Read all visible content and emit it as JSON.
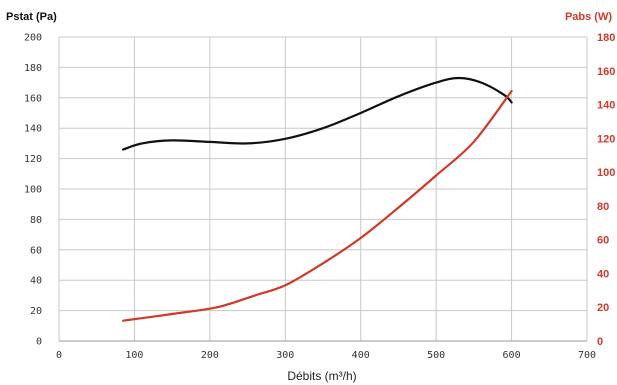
{
  "chart_data": {
    "type": "line",
    "xlabel": "Débits (m³/h)",
    "ylabel_left": "Pstat (Pa)",
    "ylabel_right": "Pabs (W)",
    "xlim": [
      0,
      700
    ],
    "ylim_left": [
      0,
      200
    ],
    "ylim_right": [
      0,
      180
    ],
    "x_ticks": [
      "0",
      "100",
      "200",
      "300",
      "400",
      "500",
      "600",
      "700"
    ],
    "y_left_ticks": [
      "0",
      "20",
      "40",
      "60",
      "80",
      "100",
      "120",
      "140",
      "160",
      "180",
      "200"
    ],
    "y_right_ticks": [
      "0",
      "20",
      "40",
      "60",
      "80",
      "100",
      "120",
      "140",
      "160",
      "180"
    ],
    "grid": true,
    "series": [
      {
        "axis": "left",
        "color": "#111111",
        "x": [
          85,
          110,
          150,
          200,
          250,
          300,
          350,
          400,
          450,
          500,
          530,
          560,
          590,
          600
        ],
        "y": [
          126,
          130,
          132,
          131,
          130,
          133,
          140,
          150,
          161,
          170,
          173,
          170,
          162,
          157
        ]
      },
      {
        "axis": "right",
        "color": "#d03a2a",
        "x": [
          85,
          150,
          210,
          260,
          300,
          350,
          400,
          450,
          500,
          550,
          600
        ],
        "y": [
          12,
          16,
          20,
          27,
          33,
          46,
          61,
          79,
          98,
          118,
          148
        ]
      }
    ]
  }
}
